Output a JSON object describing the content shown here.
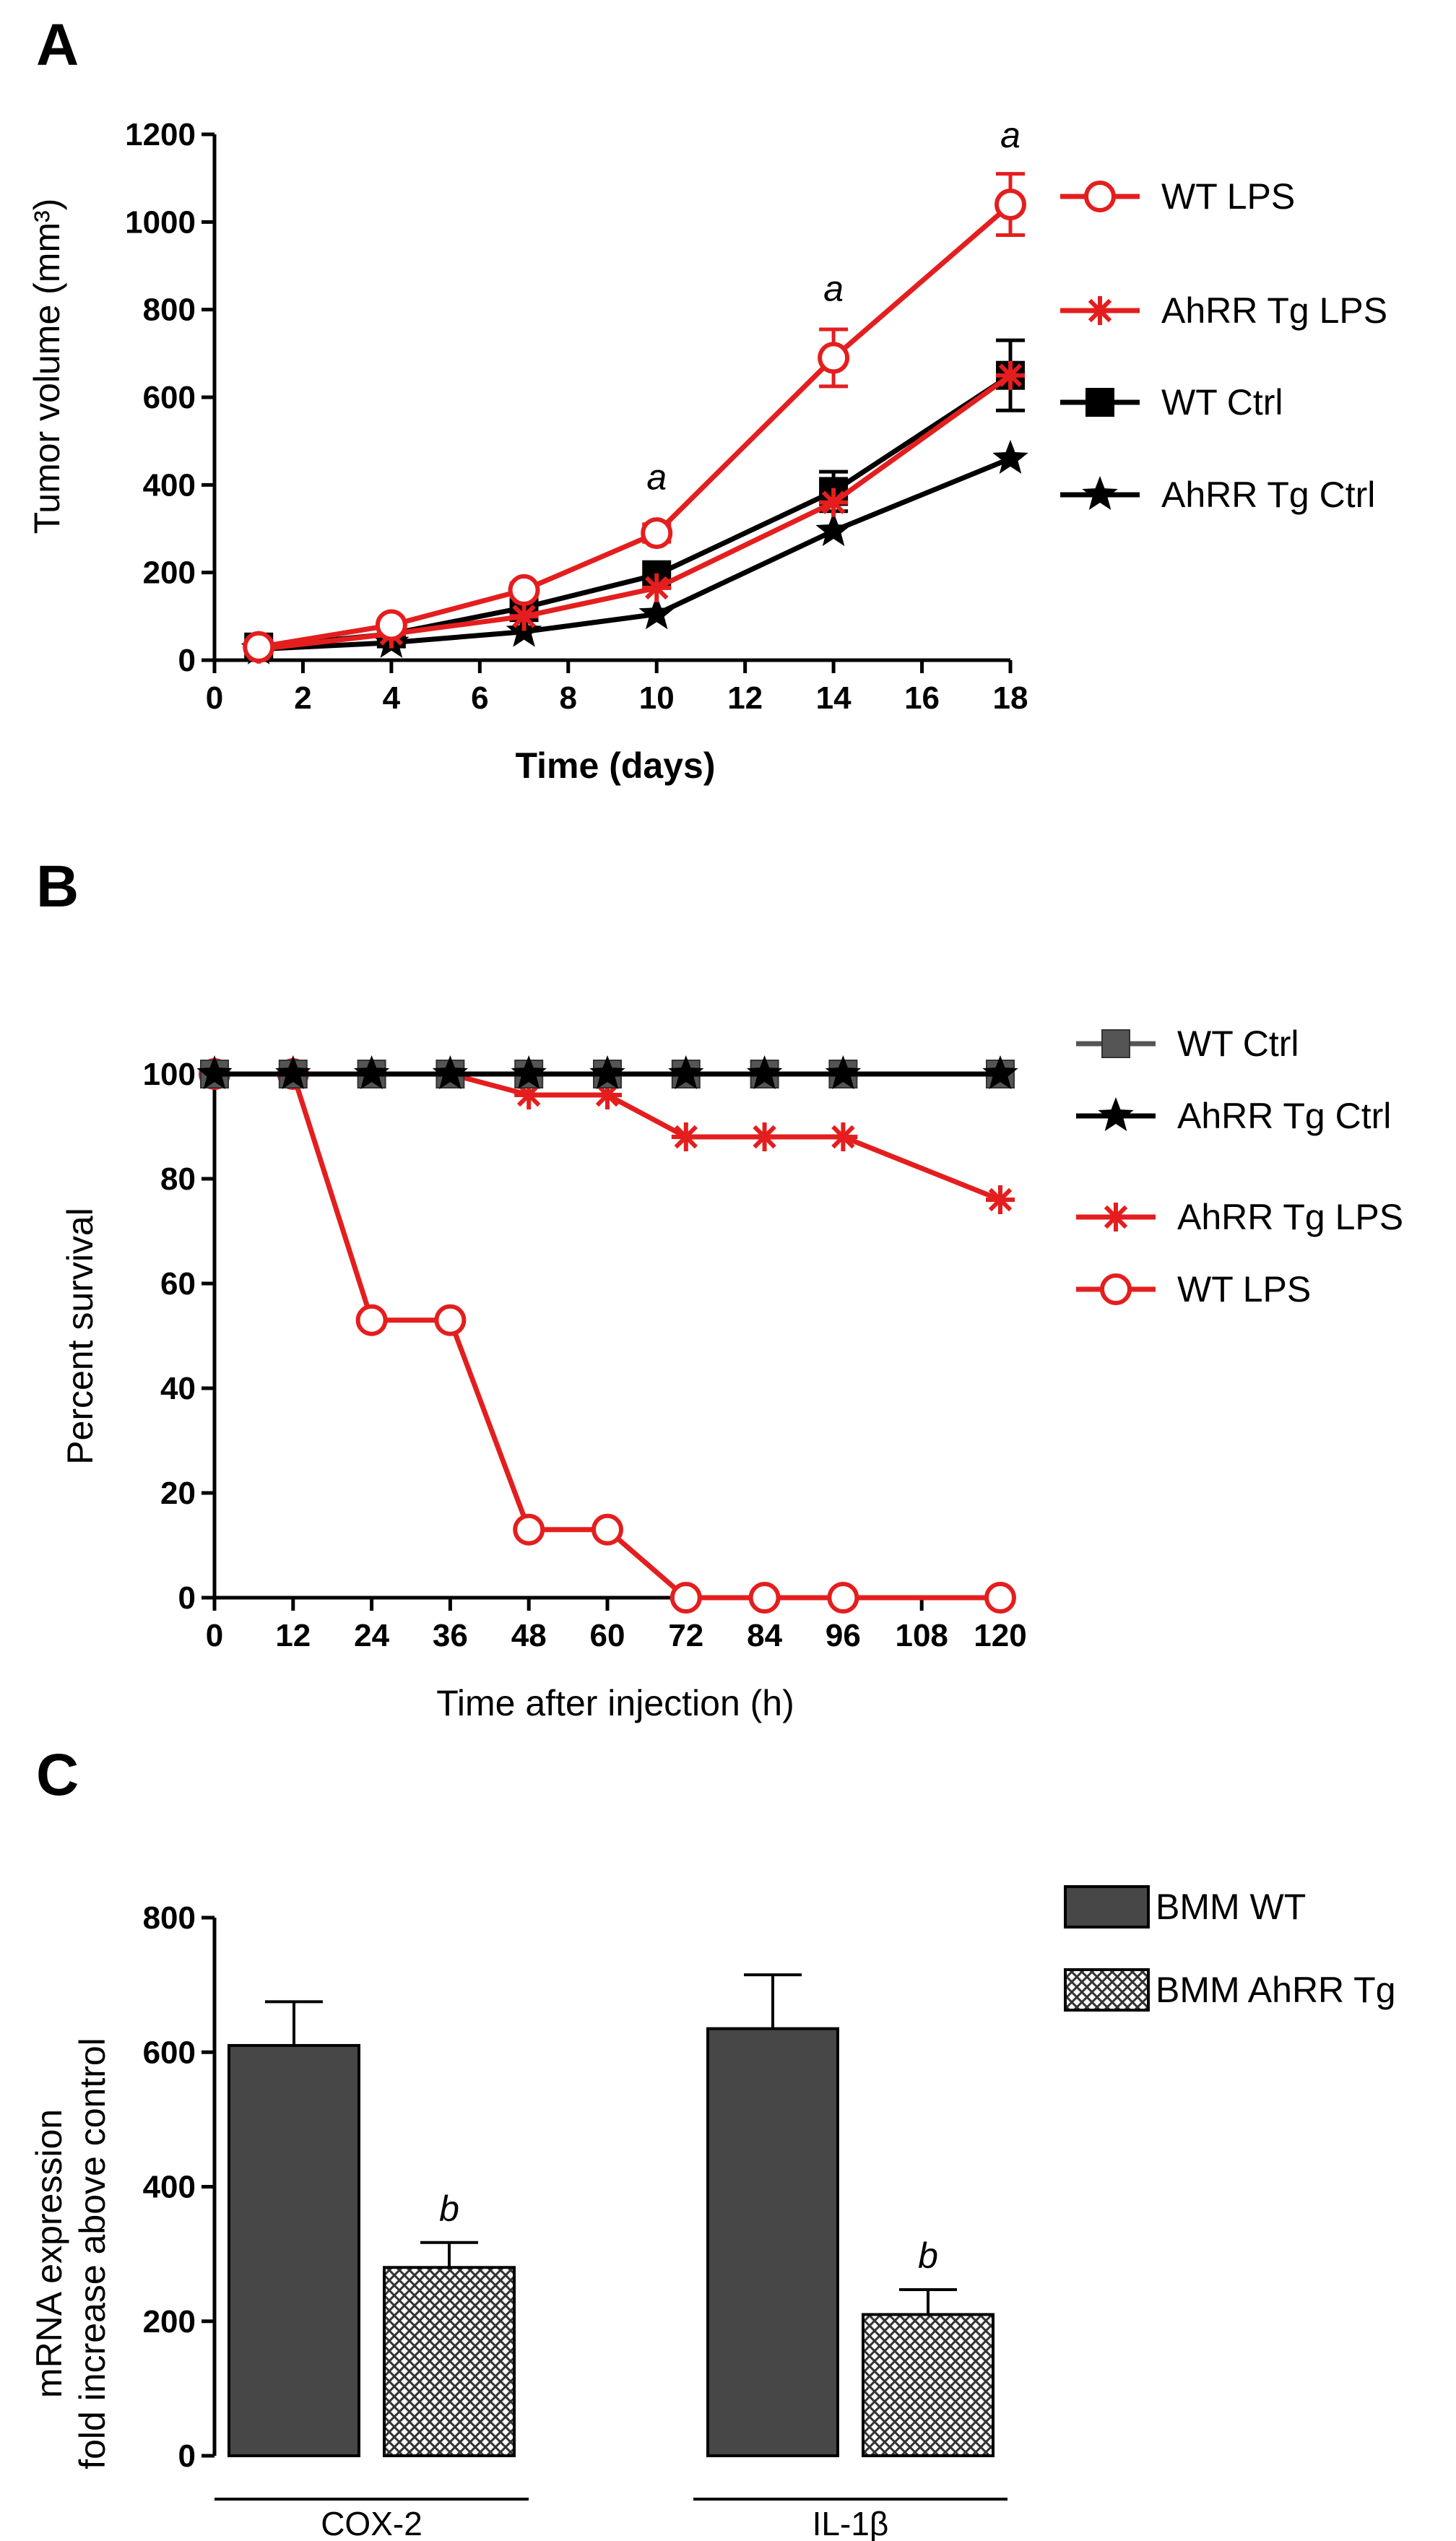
{
  "chart_data": [
    {
      "panel": "A",
      "type": "line",
      "xlabel": "Time (days)",
      "ylabel": "Tumor volume (mm³)",
      "xlim": [
        0,
        18
      ],
      "ylim": [
        0,
        1200
      ],
      "xticks": [
        0,
        2,
        4,
        6,
        8,
        10,
        12,
        14,
        16,
        18
      ],
      "yticks": [
        0,
        200,
        400,
        600,
        800,
        1000,
        1200
      ],
      "x": [
        1,
        4,
        7,
        10,
        14,
        18
      ],
      "series": [
        {
          "name": "WT LPS",
          "color": "#e41e1e",
          "marker": "open-circle",
          "values": [
            30,
            80,
            160,
            290,
            690,
            1040
          ],
          "errors": [
            0,
            10,
            15,
            20,
            65,
            70
          ]
        },
        {
          "name": "AhRR Tg LPS",
          "color": "#e41e1e",
          "marker": "asterisk",
          "values": [
            25,
            60,
            100,
            165,
            360,
            650
          ],
          "errors": [
            0,
            0,
            0,
            0,
            0,
            0
          ]
        },
        {
          "name": "WT Ctrl",
          "color": "#000000",
          "marker": "filled-square",
          "values": [
            30,
            60,
            120,
            195,
            385,
            650
          ],
          "errors": [
            0,
            0,
            0,
            0,
            45,
            80
          ]
        },
        {
          "name": "AhRR Tg Ctrl",
          "color": "#000000",
          "marker": "star",
          "values": [
            25,
            40,
            65,
            105,
            295,
            460
          ],
          "errors": [
            0,
            0,
            0,
            0,
            0,
            0
          ]
        }
      ],
      "annotations": [
        {
          "text": "a",
          "x": 10,
          "y": 390
        },
        {
          "text": "a",
          "x": 14,
          "y": 820
        },
        {
          "text": "a",
          "x": 18,
          "y": 1170
        }
      ]
    },
    {
      "panel": "B",
      "type": "line",
      "xlabel": "Time after injection (h)",
      "ylabel": "Percent survival",
      "xlim": [
        0,
        120
      ],
      "ylim": [
        0,
        100
      ],
      "xticks": [
        0,
        12,
        24,
        36,
        48,
        60,
        72,
        84,
        96,
        108,
        120
      ],
      "yticks": [
        0,
        20,
        40,
        60,
        80,
        100
      ],
      "x": [
        0,
        12,
        24,
        36,
        48,
        60,
        72,
        84,
        96,
        120
      ],
      "series": [
        {
          "name": "WT Ctrl",
          "color": "#555555",
          "marker": "filled-square",
          "values": [
            100,
            100,
            100,
            100,
            100,
            100,
            100,
            100,
            100,
            100
          ]
        },
        {
          "name": "AhRR Tg Ctrl",
          "color": "#000000",
          "marker": "star",
          "values": [
            100,
            100,
            100,
            100,
            100,
            100,
            100,
            100,
            100,
            100
          ]
        },
        {
          "name": "AhRR Tg LPS",
          "color": "#e41e1e",
          "marker": "asterisk",
          "values": [
            100,
            100,
            100,
            100,
            96,
            96,
            88,
            88,
            88,
            76
          ]
        },
        {
          "name": "WT LPS",
          "color": "#e41e1e",
          "marker": "open-circle",
          "values": [
            100,
            100,
            53,
            53,
            13,
            13,
            0,
            0,
            0,
            0
          ]
        }
      ]
    },
    {
      "panel": "C",
      "type": "bar",
      "ylabel": "mRNA expression\nfold increase above control",
      "ylabel_line1": "mRNA expression",
      "ylabel_line2": "fold increase above control",
      "ylim": [
        0,
        800
      ],
      "yticks": [
        0,
        200,
        400,
        600,
        800
      ],
      "categories": [
        "COX-2",
        "IL-1β"
      ],
      "series": [
        {
          "name": "BMM WT",
          "color": "#474747",
          "pattern": "solid",
          "values": [
            610,
            635
          ],
          "errors": [
            65,
            80
          ]
        },
        {
          "name": "BMM AhRR Tg",
          "color": "#ffffff",
          "pattern": "checker",
          "values": [
            280,
            210
          ],
          "errors": [
            37,
            37
          ]
        }
      ],
      "annotations": [
        {
          "text": "b",
          "category": 0,
          "series": 1
        },
        {
          "text": "b",
          "category": 1,
          "series": 1
        }
      ]
    }
  ],
  "panel_letters": [
    "A",
    "B",
    "C"
  ]
}
